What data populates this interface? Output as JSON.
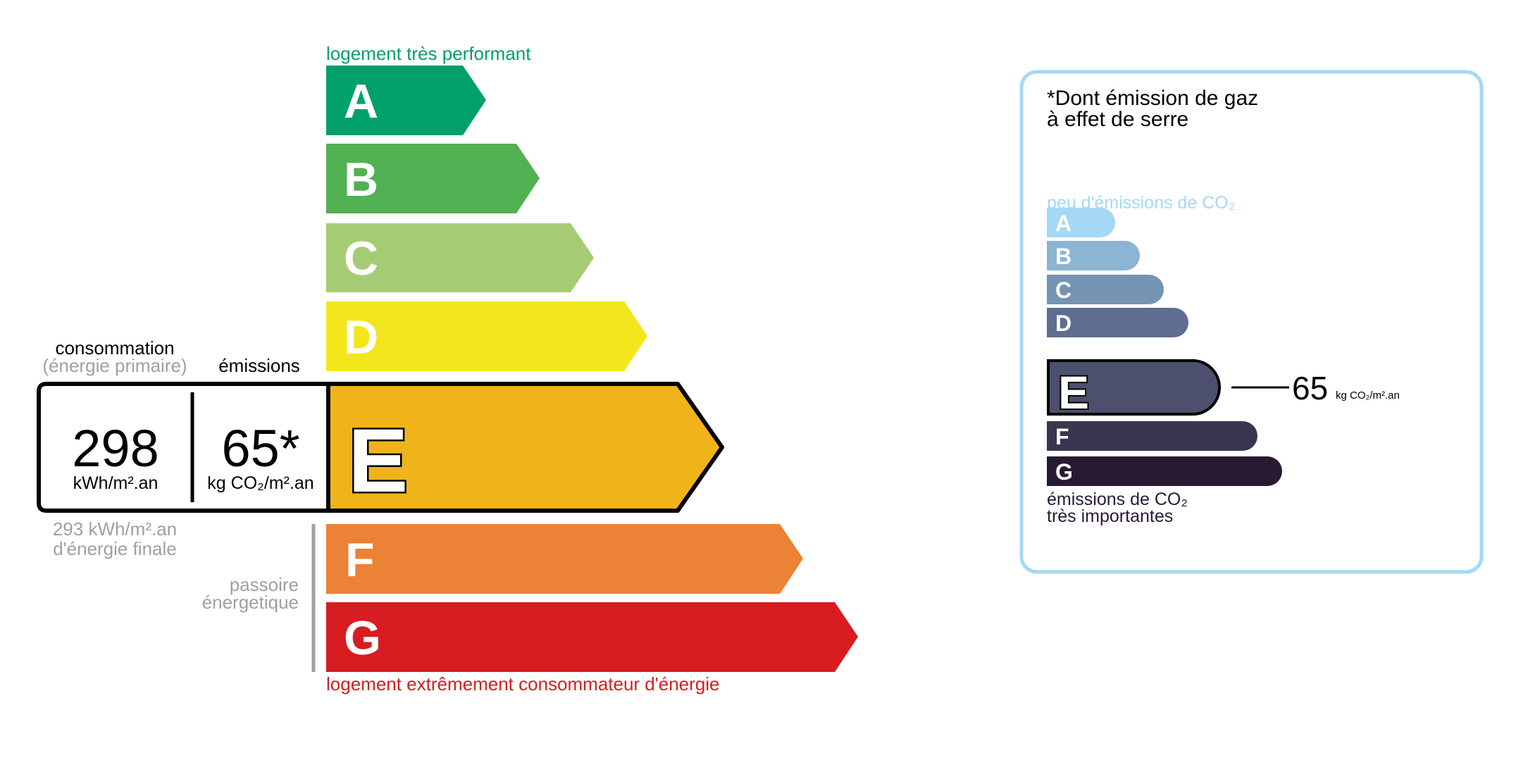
{
  "dpe": {
    "top_label": "logement très performant",
    "bottom_label": "logement extrêmement consommateur d'énergie",
    "top_label_color": "#00a06d",
    "bottom_label_color": "#d71d21",
    "classes": [
      {
        "letter": "A",
        "color": "#00a06d"
      },
      {
        "letter": "B",
        "color": "#52b153"
      },
      {
        "letter": "C",
        "color": "#a5cc74"
      },
      {
        "letter": "D",
        "color": "#f4e61c"
      },
      {
        "letter": "E",
        "color": "#f0b41a"
      },
      {
        "letter": "F",
        "color": "#eb8235"
      },
      {
        "letter": "G",
        "color": "#d71d21"
      }
    ],
    "current_class": "E",
    "consumption_label": "consommation",
    "consumption_sublabel": "(énergie primaire)",
    "emissions_label": "émissions",
    "consumption_value": "298",
    "consumption_unit": "kWh/m².an",
    "emissions_value": "65*",
    "emissions_unit": "kg CO₂/m².an",
    "final_energy_line1": "293 kWh/m².an",
    "final_energy_line2": "d'énergie finale",
    "passoire_line1": "passoire",
    "passoire_line2": "énergetique"
  },
  "ges": {
    "title_line1": "*Dont émission de gaz",
    "title_line2": "à effet de serre",
    "top_label": "peu d'émissions de CO₂",
    "bottom_label_line1": "émissions de CO₂",
    "bottom_label_line2": "très importantes",
    "border_color": "#a4d8f5",
    "classes": [
      {
        "letter": "A",
        "color": "#a4d8f5"
      },
      {
        "letter": "B",
        "color": "#8cb4d3"
      },
      {
        "letter": "C",
        "color": "#7593b3"
      },
      {
        "letter": "D",
        "color": "#5f6d90"
      },
      {
        "letter": "E",
        "color": "#4d4f6e"
      },
      {
        "letter": "F",
        "color": "#3a3550"
      },
      {
        "letter": "G",
        "color": "#291a33"
      }
    ],
    "current_class": "E",
    "value": "65",
    "unit": "kg CO₂/m².an"
  }
}
